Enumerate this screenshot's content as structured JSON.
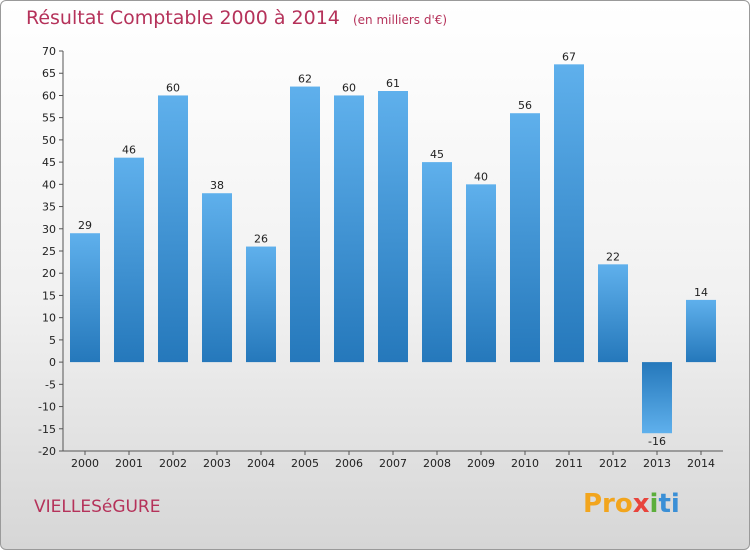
{
  "header": {
    "title": "Résultat Comptable 2000 à 2014",
    "unit": "(en milliers d'€)"
  },
  "commune": "VIELLESéGURE",
  "logo": {
    "p1": "Pro",
    "p2": "x",
    "p3": "i",
    "p4": "ti"
  },
  "colors": {
    "title": "#b5325a",
    "bar_top": "#5fb0ec",
    "bar_bottom": "#2578bb"
  },
  "chart_data": {
    "type": "bar",
    "title": "Résultat Comptable 2000 à 2014",
    "ylabel": "en milliers d'€",
    "xlabel": "",
    "categories": [
      "2000",
      "2001",
      "2002",
      "2003",
      "2004",
      "2005",
      "2006",
      "2007",
      "2008",
      "2009",
      "2010",
      "2011",
      "2012",
      "2013",
      "2014"
    ],
    "values": [
      29,
      46,
      60,
      38,
      26,
      62,
      60,
      61,
      45,
      40,
      56,
      67,
      22,
      -16,
      14
    ],
    "value_labels": [
      "29",
      "46",
      "60",
      "38",
      "26",
      "62",
      "60",
      "61",
      "45",
      "40",
      "56",
      "67",
      "22",
      "-16",
      "14"
    ],
    "ylim": [
      -20,
      70
    ],
    "yticks": [
      -20,
      -15,
      -10,
      -5,
      0,
      5,
      10,
      15,
      20,
      25,
      30,
      35,
      40,
      45,
      50,
      55,
      60,
      65,
      70
    ],
    "grid": false
  }
}
